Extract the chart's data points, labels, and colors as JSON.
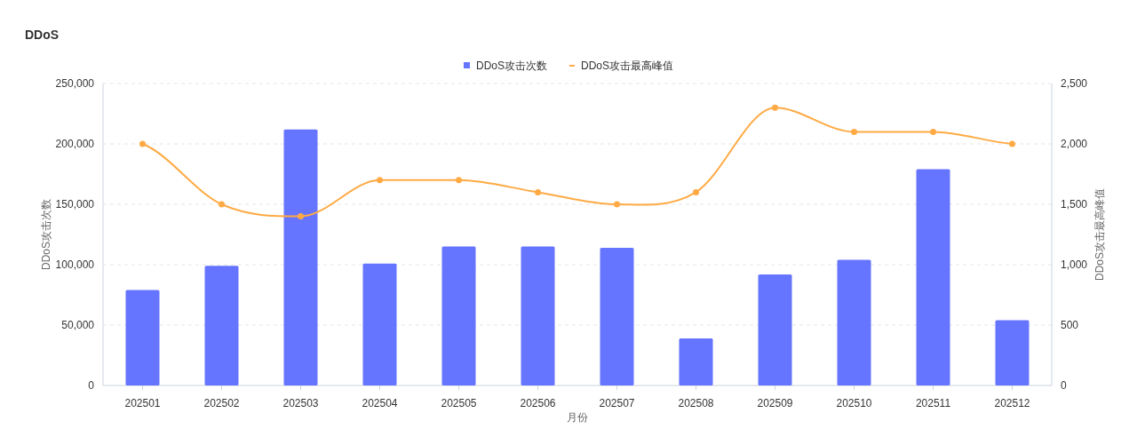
{
  "chart_data": {
    "type": "bar",
    "title": "DDoS",
    "xlabel": "月份",
    "ylabel": "DDoS攻击次数",
    "y2label": "DDoS攻击最高峰值",
    "categories": [
      "202501",
      "202502",
      "202503",
      "202504",
      "202505",
      "202506",
      "202507",
      "202508",
      "202509",
      "202510",
      "202511",
      "202512"
    ],
    "series": [
      {
        "name": "DDoS攻击次数",
        "color": "#6675ff",
        "values": [
          79000,
          99000,
          212000,
          101000,
          115000,
          115000,
          114000,
          39000,
          92000,
          104000,
          179000,
          54000
        ]
      },
      {
        "name": "DDoS攻击最高峰值",
        "type": "line",
        "axis": "y2",
        "color": "#ffaa44",
        "marker": "circle",
        "values": [
          2000,
          1500,
          1400,
          1700,
          1700,
          1600,
          1500,
          1600,
          2300,
          2100,
          2100,
          2000
        ]
      }
    ],
    "ylim": [
      0,
      250000
    ],
    "yticks": [
      0,
      {
        "value": 50000,
        "label": "50,000"
      },
      {
        "value": 100000,
        "label": "100,000"
      },
      {
        "value": 150000,
        "label": "150,000"
      },
      {
        "value": 200000,
        "label": "200,000"
      },
      {
        "value": 250000,
        "label": "250,000"
      }
    ],
    "y2lim": [
      0,
      2500
    ],
    "y2ticks": [
      0,
      500,
      {
        "value": 1000,
        "label": "1,000"
      },
      {
        "value": 1500,
        "label": "1,500"
      },
      {
        "value": 2000,
        "label": "2,000"
      },
      {
        "value": 2500,
        "label": "2,500"
      }
    ],
    "grid": "y",
    "legend": "top"
  }
}
